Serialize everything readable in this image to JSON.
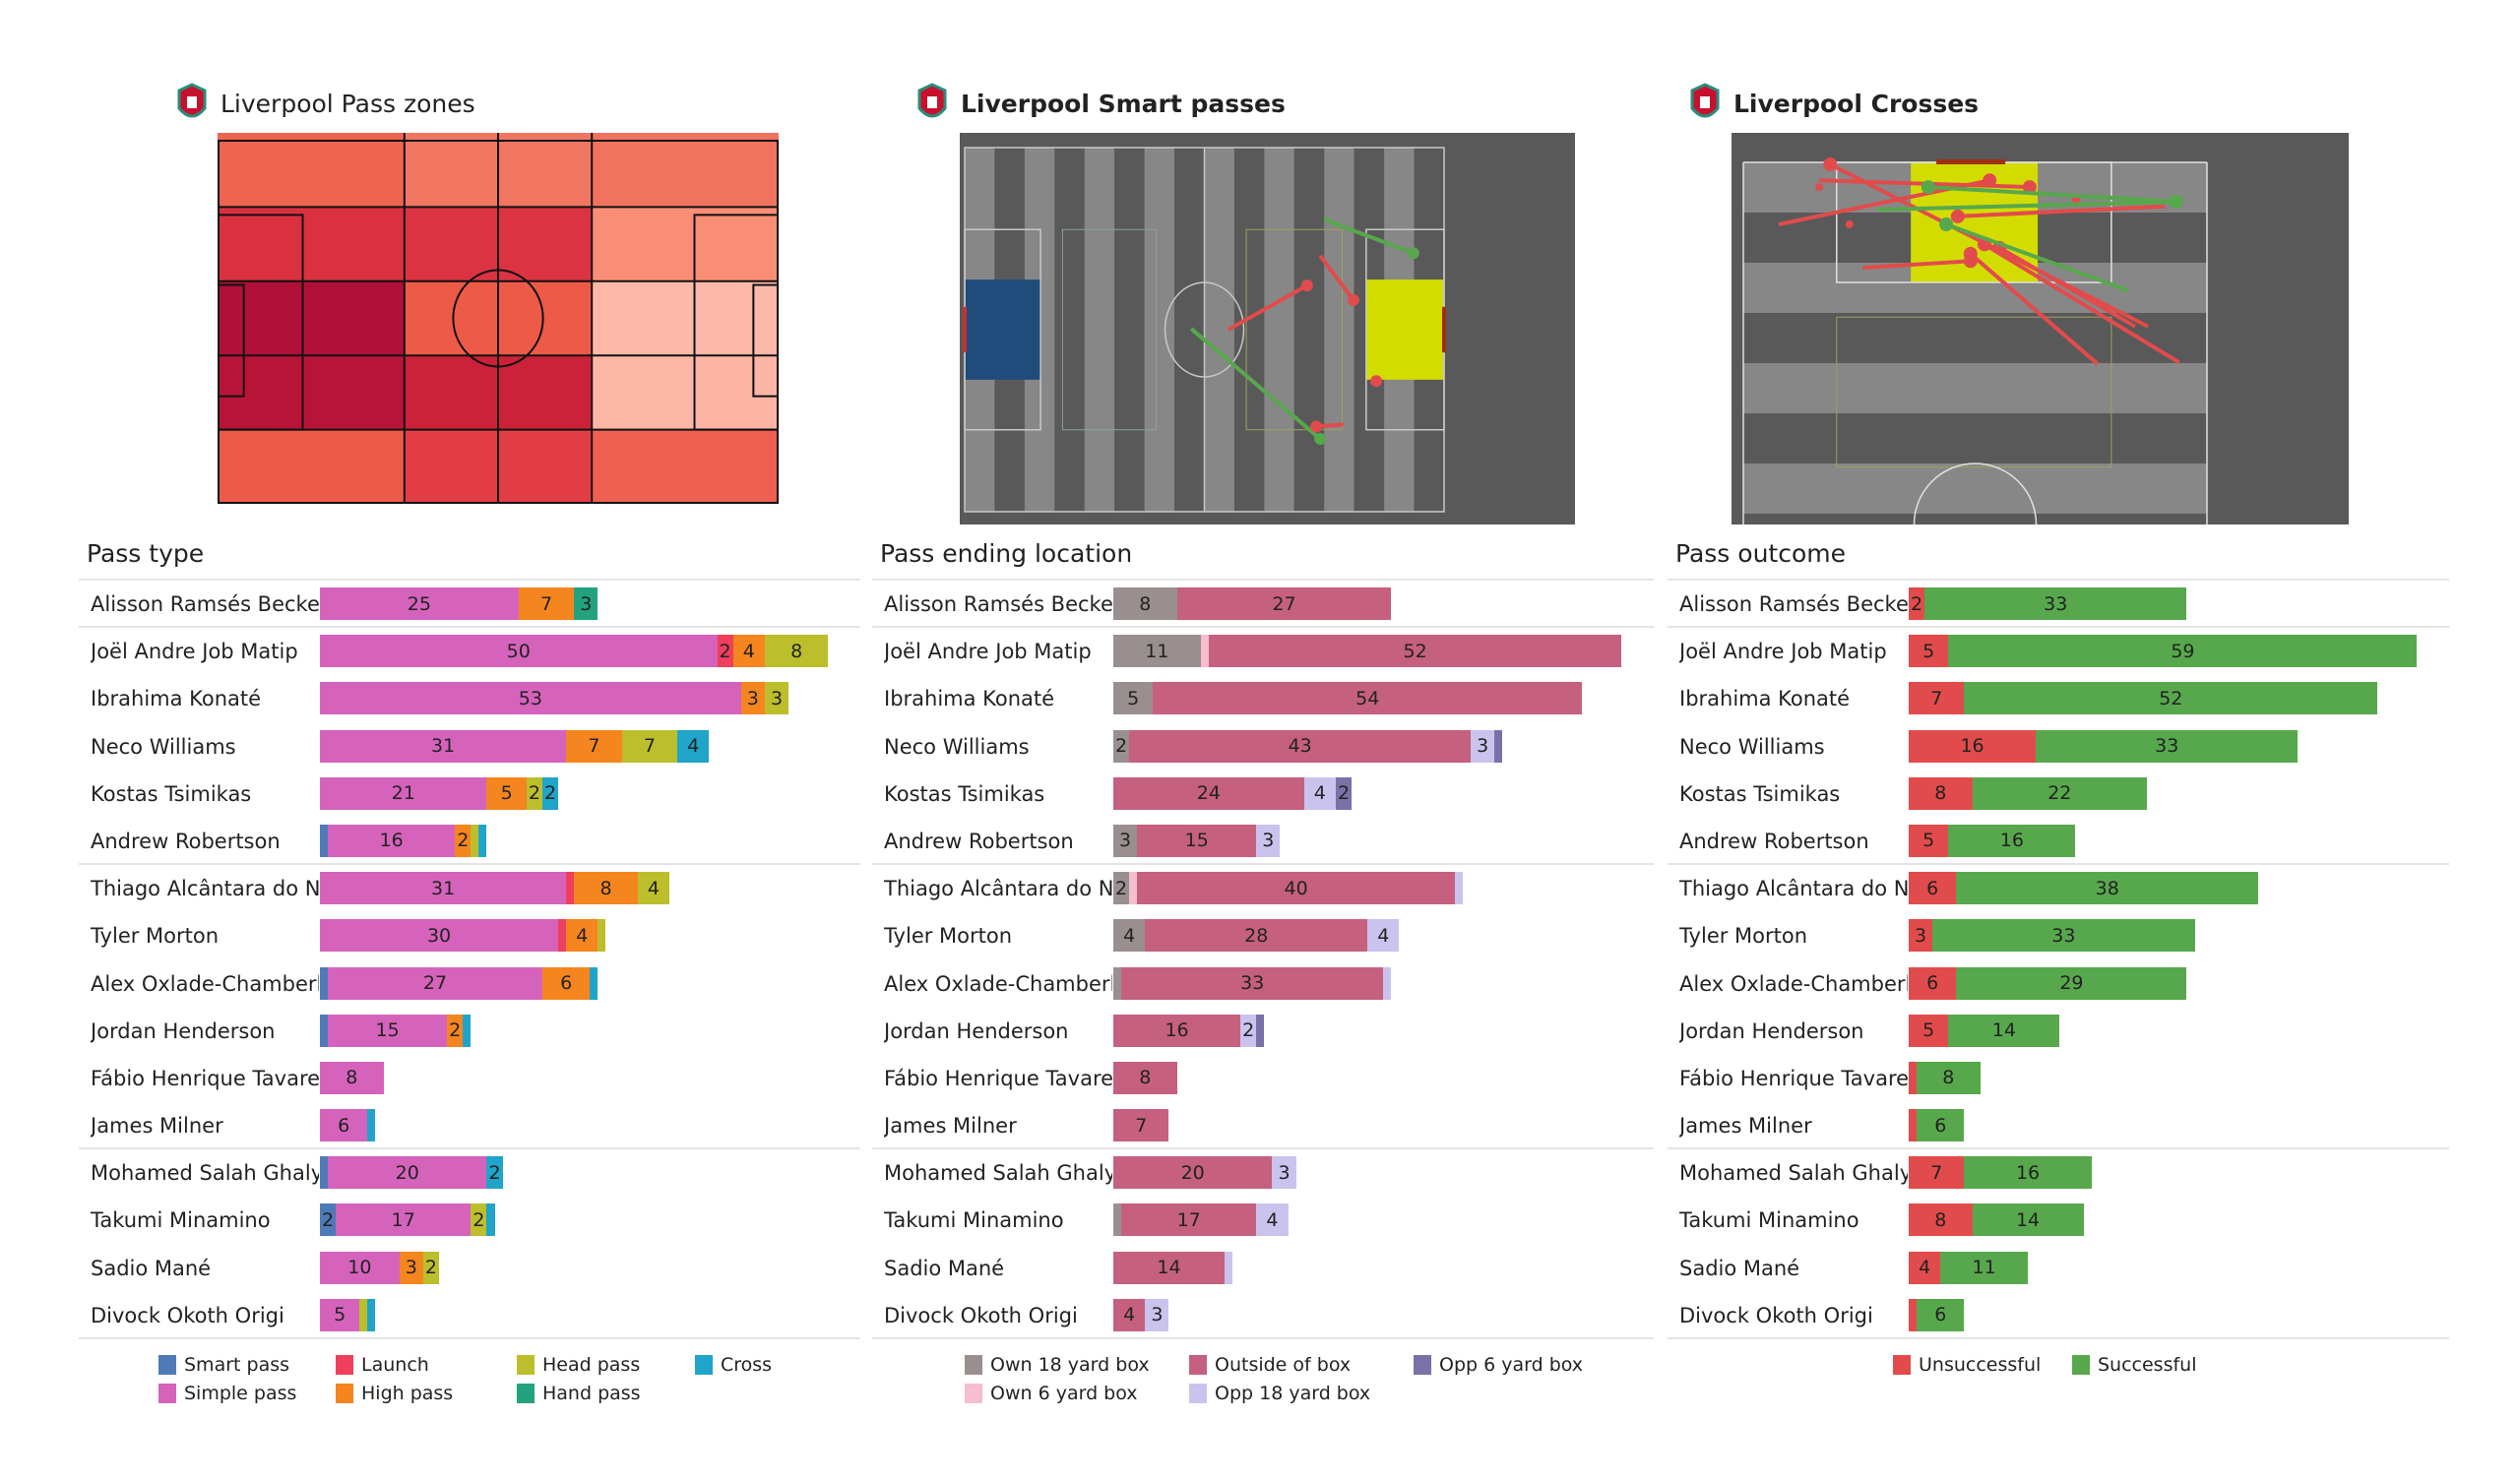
{
  "titles": {
    "pass_zones": "Liverpool Pass zones",
    "smart_passes": "Liverpool Smart passes",
    "crosses": "Liverpool Crosses"
  },
  "colors": {
    "smart_pass": "#4f7ab8",
    "simple_pass": "#d563bb",
    "launch": "#ee3f5c",
    "high_pass": "#f5851f",
    "head_pass": "#bcbf2b",
    "hand_pass": "#22a37d",
    "cross": "#20a4c9",
    "own_18": "#9a8f8f",
    "own_6": "#f7bdd0",
    "outside": "#c5607f",
    "opp_18": "#cac3ed",
    "opp_6": "#7b70a7",
    "unsuccessful": "#e24b4b",
    "successful": "#57a84c"
  },
  "pass_zones": {
    "grid": [
      [
        "#ef6450",
        "#ef6450",
        "#f07662",
        "#f07662",
        "#ef735e",
        "#ef735e"
      ],
      [
        "#da3040",
        "#da3040",
        "#dc3343",
        "#dc3343",
        "#fa8d76",
        "#fa8d76"
      ],
      [
        "#b01038",
        "#b01038",
        "#ee5a48",
        "#ee5a48",
        "#fcb9a9",
        "#fcb9a9"
      ],
      [
        "#b81438",
        "#b81438",
        "#cc2239",
        "#cc2239",
        "#fcb6a6",
        "#fcb4a4"
      ],
      [
        "#ee5a4a",
        "#ee5a4a",
        "#e23d45",
        "#e23d45",
        "#ef6050",
        "#ef6050"
      ]
    ]
  },
  "smart_passes": {
    "passes": [
      {
        "x1": 90,
        "y1": 15.8,
        "x2": 112.3,
        "y2": 23.2,
        "outcome": "successful"
      },
      {
        "x1": 56.7,
        "y1": 39.8,
        "x2": 89,
        "y2": 64,
        "outcome": "successful"
      },
      {
        "x1": 66,
        "y1": 40,
        "x2": 85.7,
        "y2": 30.3,
        "outcome": "unsuccessful"
      },
      {
        "x1": 89,
        "y1": 23.8,
        "x2": 97.3,
        "y2": 33.5,
        "outcome": "unsuccessful"
      },
      {
        "x1": 94.8,
        "y1": 60.8,
        "x2": 88,
        "y2": 61.3,
        "outcome": "unsuccessful"
      },
      {
        "x1": 103,
        "y1": 51.3,
        "x2": 103,
        "y2": 51.3,
        "outcome": "unsuccessful"
      }
    ]
  },
  "crosses": {
    "passes": [
      {
        "x1": 69.8,
        "y1": 24.6,
        "x2": 15,
        "y2": 0.3,
        "outcome": "unsuccessful"
      },
      {
        "x1": 6.1,
        "y1": 9.3,
        "x2": 42.5,
        "y2": 2.7,
        "outcome": "unsuccessful"
      },
      {
        "x1": 13.2,
        "y1": 2.7,
        "x2": 49.4,
        "y2": 3.7,
        "outcome": "unsuccessful"
      },
      {
        "x1": 72.7,
        "y1": 6.6,
        "x2": 37,
        "y2": 8.1,
        "outcome": "unsuccessful"
      },
      {
        "x1": 75.2,
        "y1": 30,
        "x2": 41.6,
        "y2": 12.3,
        "outcome": "unsuccessful"
      },
      {
        "x1": 61.1,
        "y1": 30.2,
        "x2": 39.2,
        "y2": 13.7,
        "outcome": "unsuccessful"
      },
      {
        "x1": 67.6,
        "y1": 24.6,
        "x2": 44.2,
        "y2": 12.8,
        "outcome": "unsuccessful"
      },
      {
        "x1": 20.6,
        "y1": 15.8,
        "x2": 39.2,
        "y2": 14.8,
        "outcome": "unsuccessful"
      },
      {
        "x1": 13.1,
        "y1": 3.7,
        "x2": 13.1,
        "y2": 3.7,
        "outcome": "unsuccessful"
      },
      {
        "x1": 18.3,
        "y1": 9.3,
        "x2": 18.3,
        "y2": 9.3,
        "outcome": "unsuccessful"
      },
      {
        "x1": 57.4,
        "y1": 5.6,
        "x2": 57.4,
        "y2": 5.6,
        "outcome": "unsuccessful"
      },
      {
        "x1": 75.2,
        "y1": 5.9,
        "x2": 31.9,
        "y2": 3.7,
        "outcome": "successful"
      },
      {
        "x1": 66.4,
        "y1": 19.2,
        "x2": 35,
        "y2": 9.3,
        "outcome": "successful"
      },
      {
        "x1": 23.1,
        "y1": 7.1,
        "x2": 74.7,
        "y2": 5.9,
        "outcome": "successful"
      }
    ]
  },
  "players": [
    "Alisson Ramsés Becker",
    "Joël Andre Job Matip",
    "Ibrahima Konaté",
    "Neco Williams",
    "Kostas Tsimikas",
    "Andrew Robertson",
    "Thiago Alcântara do N..",
    "Tyler Morton",
    "Alex Oxlade-Chamberl..",
    "Jordan Henderson",
    "Fábio Henrique Tavares",
    "James Milner",
    "Mohamed  Salah Ghaly",
    "Takumi Minamino",
    "Sadio Mané",
    "Divock Okoth Origi"
  ],
  "chart_data": [
    {
      "type": "bar",
      "title": "Pass type",
      "stacked": true,
      "orientation": "horizontal",
      "categories": [
        "Alisson Ramsés Becker",
        "Joël Andre Job Matip",
        "Ibrahima Konaté",
        "Neco Williams",
        "Kostas Tsimikas",
        "Andrew Robertson",
        "Thiago Alcântara do N..",
        "Tyler Morton",
        "Alex Oxlade-Chamberl..",
        "Jordan Henderson",
        "Fábio Henrique Tavares",
        "James Milner",
        "Mohamed  Salah Ghaly",
        "Takumi Minamino",
        "Sadio Mané",
        "Divock Okoth Origi"
      ],
      "series": [
        {
          "name": "Smart pass",
          "key": "smart_pass",
          "values": [
            0,
            0,
            0,
            0,
            0,
            1,
            0,
            0,
            1,
            1,
            0,
            0,
            1,
            2,
            0,
            0
          ]
        },
        {
          "name": "Simple pass",
          "key": "simple_pass",
          "values": [
            25,
            50,
            53,
            31,
            21,
            16,
            31,
            30,
            27,
            15,
            8,
            6,
            20,
            17,
            10,
            5
          ]
        },
        {
          "name": "Launch",
          "key": "launch",
          "values": [
            0,
            2,
            0,
            0,
            0,
            0,
            1,
            1,
            0,
            0,
            0,
            0,
            0,
            0,
            0,
            0
          ]
        },
        {
          "name": "High pass",
          "key": "high_pass",
          "values": [
            7,
            4,
            3,
            7,
            5,
            2,
            8,
            4,
            6,
            2,
            0,
            0,
            0,
            0,
            3,
            0
          ]
        },
        {
          "name": "Head pass",
          "key": "head_pass",
          "values": [
            0,
            8,
            3,
            7,
            2,
            1,
            4,
            1,
            0,
            0,
            0,
            0,
            0,
            2,
            2,
            1
          ]
        },
        {
          "name": "Hand pass",
          "key": "hand_pass",
          "values": [
            3,
            0,
            0,
            0,
            0,
            0,
            0,
            0,
            0,
            0,
            0,
            0,
            0,
            0,
            0,
            0
          ]
        },
        {
          "name": "Cross",
          "key": "cross",
          "values": [
            0,
            0,
            0,
            4,
            2,
            1,
            0,
            0,
            1,
            1,
            0,
            1,
            2,
            1,
            0,
            1
          ]
        }
      ],
      "legend": "bottom"
    },
    {
      "type": "bar",
      "title": "Pass ending location",
      "stacked": true,
      "orientation": "horizontal",
      "categories": [
        "Alisson Ramsés Becker",
        "Joël Andre Job Matip",
        "Ibrahima Konaté",
        "Neco Williams",
        "Kostas Tsimikas",
        "Andrew Robertson",
        "Thiago Alcântara do N..",
        "Tyler Morton",
        "Alex Oxlade-Chamberl..",
        "Jordan Henderson",
        "Fábio Henrique Tavares",
        "James Milner",
        "Mohamed  Salah Ghaly",
        "Takumi Minamino",
        "Sadio Mané",
        "Divock Okoth Origi"
      ],
      "series": [
        {
          "name": "Own 18 yard box",
          "key": "own_18",
          "values": [
            8,
            11,
            5,
            2,
            0,
            3,
            2,
            4,
            1,
            0,
            0,
            0,
            0,
            1,
            0,
            0
          ]
        },
        {
          "name": "Own 6 yard box",
          "key": "own_6",
          "values": [
            0,
            1,
            0,
            0,
            0,
            0,
            1,
            0,
            0,
            0,
            0,
            0,
            0,
            0,
            0,
            0
          ]
        },
        {
          "name": "Outside of box",
          "key": "outside",
          "values": [
            27,
            52,
            54,
            43,
            24,
            15,
            40,
            28,
            33,
            16,
            8,
            7,
            20,
            17,
            14,
            4
          ]
        },
        {
          "name": "Opp 18 yard box",
          "key": "opp_18",
          "values": [
            0,
            0,
            0,
            3,
            4,
            3,
            1,
            4,
            1,
            2,
            0,
            0,
            3,
            4,
            1,
            3
          ]
        },
        {
          "name": "Opp 6 yard box",
          "key": "opp_6",
          "values": [
            0,
            0,
            0,
            1,
            2,
            0,
            0,
            0,
            0,
            1,
            0,
            0,
            0,
            0,
            0,
            0
          ]
        }
      ],
      "legend": "bottom"
    },
    {
      "type": "bar",
      "title": "Pass outcome",
      "stacked": true,
      "orientation": "horizontal",
      "categories": [
        "Alisson Ramsés Becker",
        "Joël Andre Job Matip",
        "Ibrahima Konaté",
        "Neco Williams",
        "Kostas Tsimikas",
        "Andrew Robertson",
        "Thiago Alcântara do N..",
        "Tyler Morton",
        "Alex Oxlade-Chamberl..",
        "Jordan Henderson",
        "Fábio Henrique Tavares",
        "James Milner",
        "Mohamed  Salah Ghaly",
        "Takumi Minamino",
        "Sadio Mané",
        "Divock Okoth Origi"
      ],
      "series": [
        {
          "name": "Unsuccessful",
          "key": "unsuccessful",
          "values": [
            2,
            5,
            7,
            16,
            8,
            5,
            6,
            3,
            6,
            5,
            1,
            1,
            7,
            8,
            4,
            1
          ]
        },
        {
          "name": "Successful",
          "key": "successful",
          "values": [
            33,
            59,
            52,
            33,
            22,
            16,
            38,
            33,
            29,
            14,
            8,
            6,
            16,
            14,
            11,
            6
          ]
        }
      ],
      "legend": "bottom"
    }
  ],
  "legends": {
    "pass_type": [
      "Smart pass",
      "Simple pass",
      "Launch",
      "High pass",
      "Head pass",
      "Hand pass",
      "Cross"
    ],
    "ending": [
      "Own 18 yard box",
      "Own 6 yard box",
      "Outside of box",
      "Opp 18 yard box",
      "Opp 6 yard box"
    ],
    "outcome": [
      "Unsuccessful",
      "Successful"
    ]
  }
}
